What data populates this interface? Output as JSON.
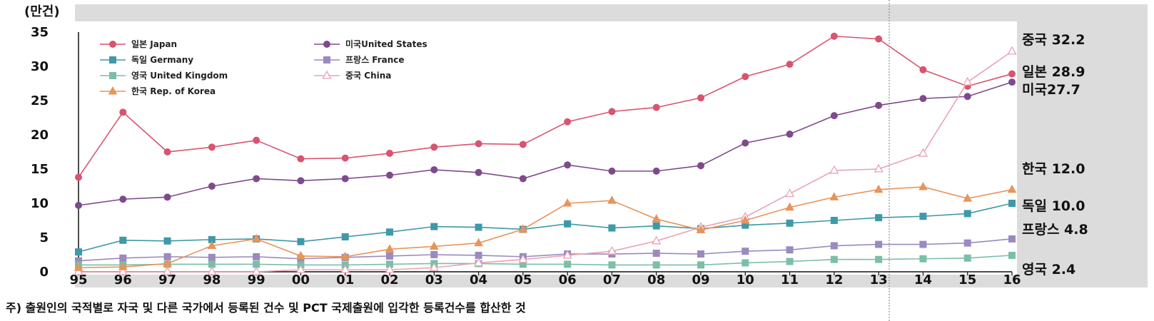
{
  "chart_data": {
    "type": "line",
    "unit_label": "(만건)",
    "categories": [
      "95",
      "96",
      "97",
      "98",
      "99",
      "00",
      "01",
      "02",
      "03",
      "04",
      "05",
      "06",
      "07",
      "08",
      "09",
      "10",
      "11",
      "12",
      "13",
      "14",
      "15",
      "16"
    ],
    "ylim": [
      0,
      35
    ],
    "yticks": [
      "35",
      "30",
      "25",
      "20",
      "15",
      "10",
      "5",
      "0"
    ],
    "grid": false,
    "legend_position": "top-left",
    "series": [
      {
        "name": "일본 Japan",
        "color": "#d9546e",
        "marker": "circle",
        "values": [
          13.8,
          23.3,
          17.5,
          18.2,
          19.2,
          16.5,
          16.6,
          17.3,
          18.2,
          18.7,
          18.6,
          21.9,
          23.4,
          24.0,
          25.4,
          28.5,
          30.3,
          34.4,
          34.0,
          29.5,
          27.1,
          28.9
        ]
      },
      {
        "name": "미국United States",
        "color": "#7f4a8c",
        "marker": "circle",
        "values": [
          9.7,
          10.6,
          10.9,
          12.5,
          13.6,
          13.3,
          13.6,
          14.1,
          14.9,
          14.5,
          13.6,
          15.6,
          14.7,
          14.7,
          15.5,
          18.8,
          20.1,
          22.8,
          24.3,
          25.3,
          25.6,
          27.7
        ]
      },
      {
        "name": "독일 Germany",
        "color": "#3e99a8",
        "marker": "square",
        "values": [
          2.9,
          4.6,
          4.5,
          4.7,
          4.8,
          4.4,
          5.1,
          5.8,
          6.6,
          6.5,
          6.2,
          7.0,
          6.4,
          6.7,
          6.3,
          6.8,
          7.1,
          7.5,
          7.9,
          8.1,
          8.5,
          10.0
        ]
      },
      {
        "name": "프랑스 France",
        "color": "#9a8ac0",
        "marker": "square",
        "values": [
          1.6,
          2.0,
          2.2,
          2.1,
          2.2,
          1.9,
          2.1,
          2.3,
          2.5,
          2.4,
          2.2,
          2.6,
          2.6,
          2.7,
          2.6,
          3.0,
          3.2,
          3.8,
          4.0,
          4.0,
          4.2,
          4.8
        ]
      },
      {
        "name": "영국 United Kingdom",
        "color": "#7bbfa8",
        "marker": "square",
        "values": [
          1.0,
          1.0,
          1.1,
          1.1,
          1.1,
          1.0,
          1.0,
          1.1,
          1.2,
          1.2,
          1.1,
          1.1,
          1.0,
          1.0,
          1.0,
          1.3,
          1.5,
          1.8,
          1.8,
          1.9,
          2.0,
          2.4
        ]
      },
      {
        "name": "중국 China",
        "color": "#e9a3b4",
        "marker": "triangle-open",
        "values": [
          0.0,
          0.0,
          0.0,
          0.0,
          0.0,
          0.3,
          0.3,
          0.3,
          0.6,
          1.3,
          1.8,
          2.4,
          3.0,
          4.5,
          6.5,
          8.0,
          11.4,
          14.8,
          15.0,
          17.3,
          27.7,
          32.2
        ]
      },
      {
        "name": "한국 Rep. of Korea",
        "color": "#e8945a",
        "marker": "triangle",
        "values": [
          0.6,
          0.7,
          1.2,
          3.8,
          4.8,
          2.3,
          2.2,
          3.3,
          3.7,
          4.2,
          6.2,
          10.0,
          10.4,
          7.7,
          6.1,
          7.5,
          9.4,
          10.9,
          12.0,
          12.4,
          10.7,
          12.0
        ]
      }
    ],
    "end_labels": [
      {
        "text": "중국 32.2",
        "value": 32.2
      },
      {
        "text": "일본 28.9",
        "value": 28.9
      },
      {
        "text": "미국27.7",
        "value": 27.7
      },
      {
        "text": "한국 12.0",
        "value": 12.0
      },
      {
        "text": "독일 10.0",
        "value": 10.0
      },
      {
        "text": "프랑스 4.8",
        "value": 4.8
      },
      {
        "text": "영국 2.4",
        "value": 2.4
      }
    ]
  },
  "note": "주) 출원인의 국적별로 자국 및 다른 국가에서 등록된 건수 및 PCT 국제출원에 입각한 등록건수를 합산한 것"
}
